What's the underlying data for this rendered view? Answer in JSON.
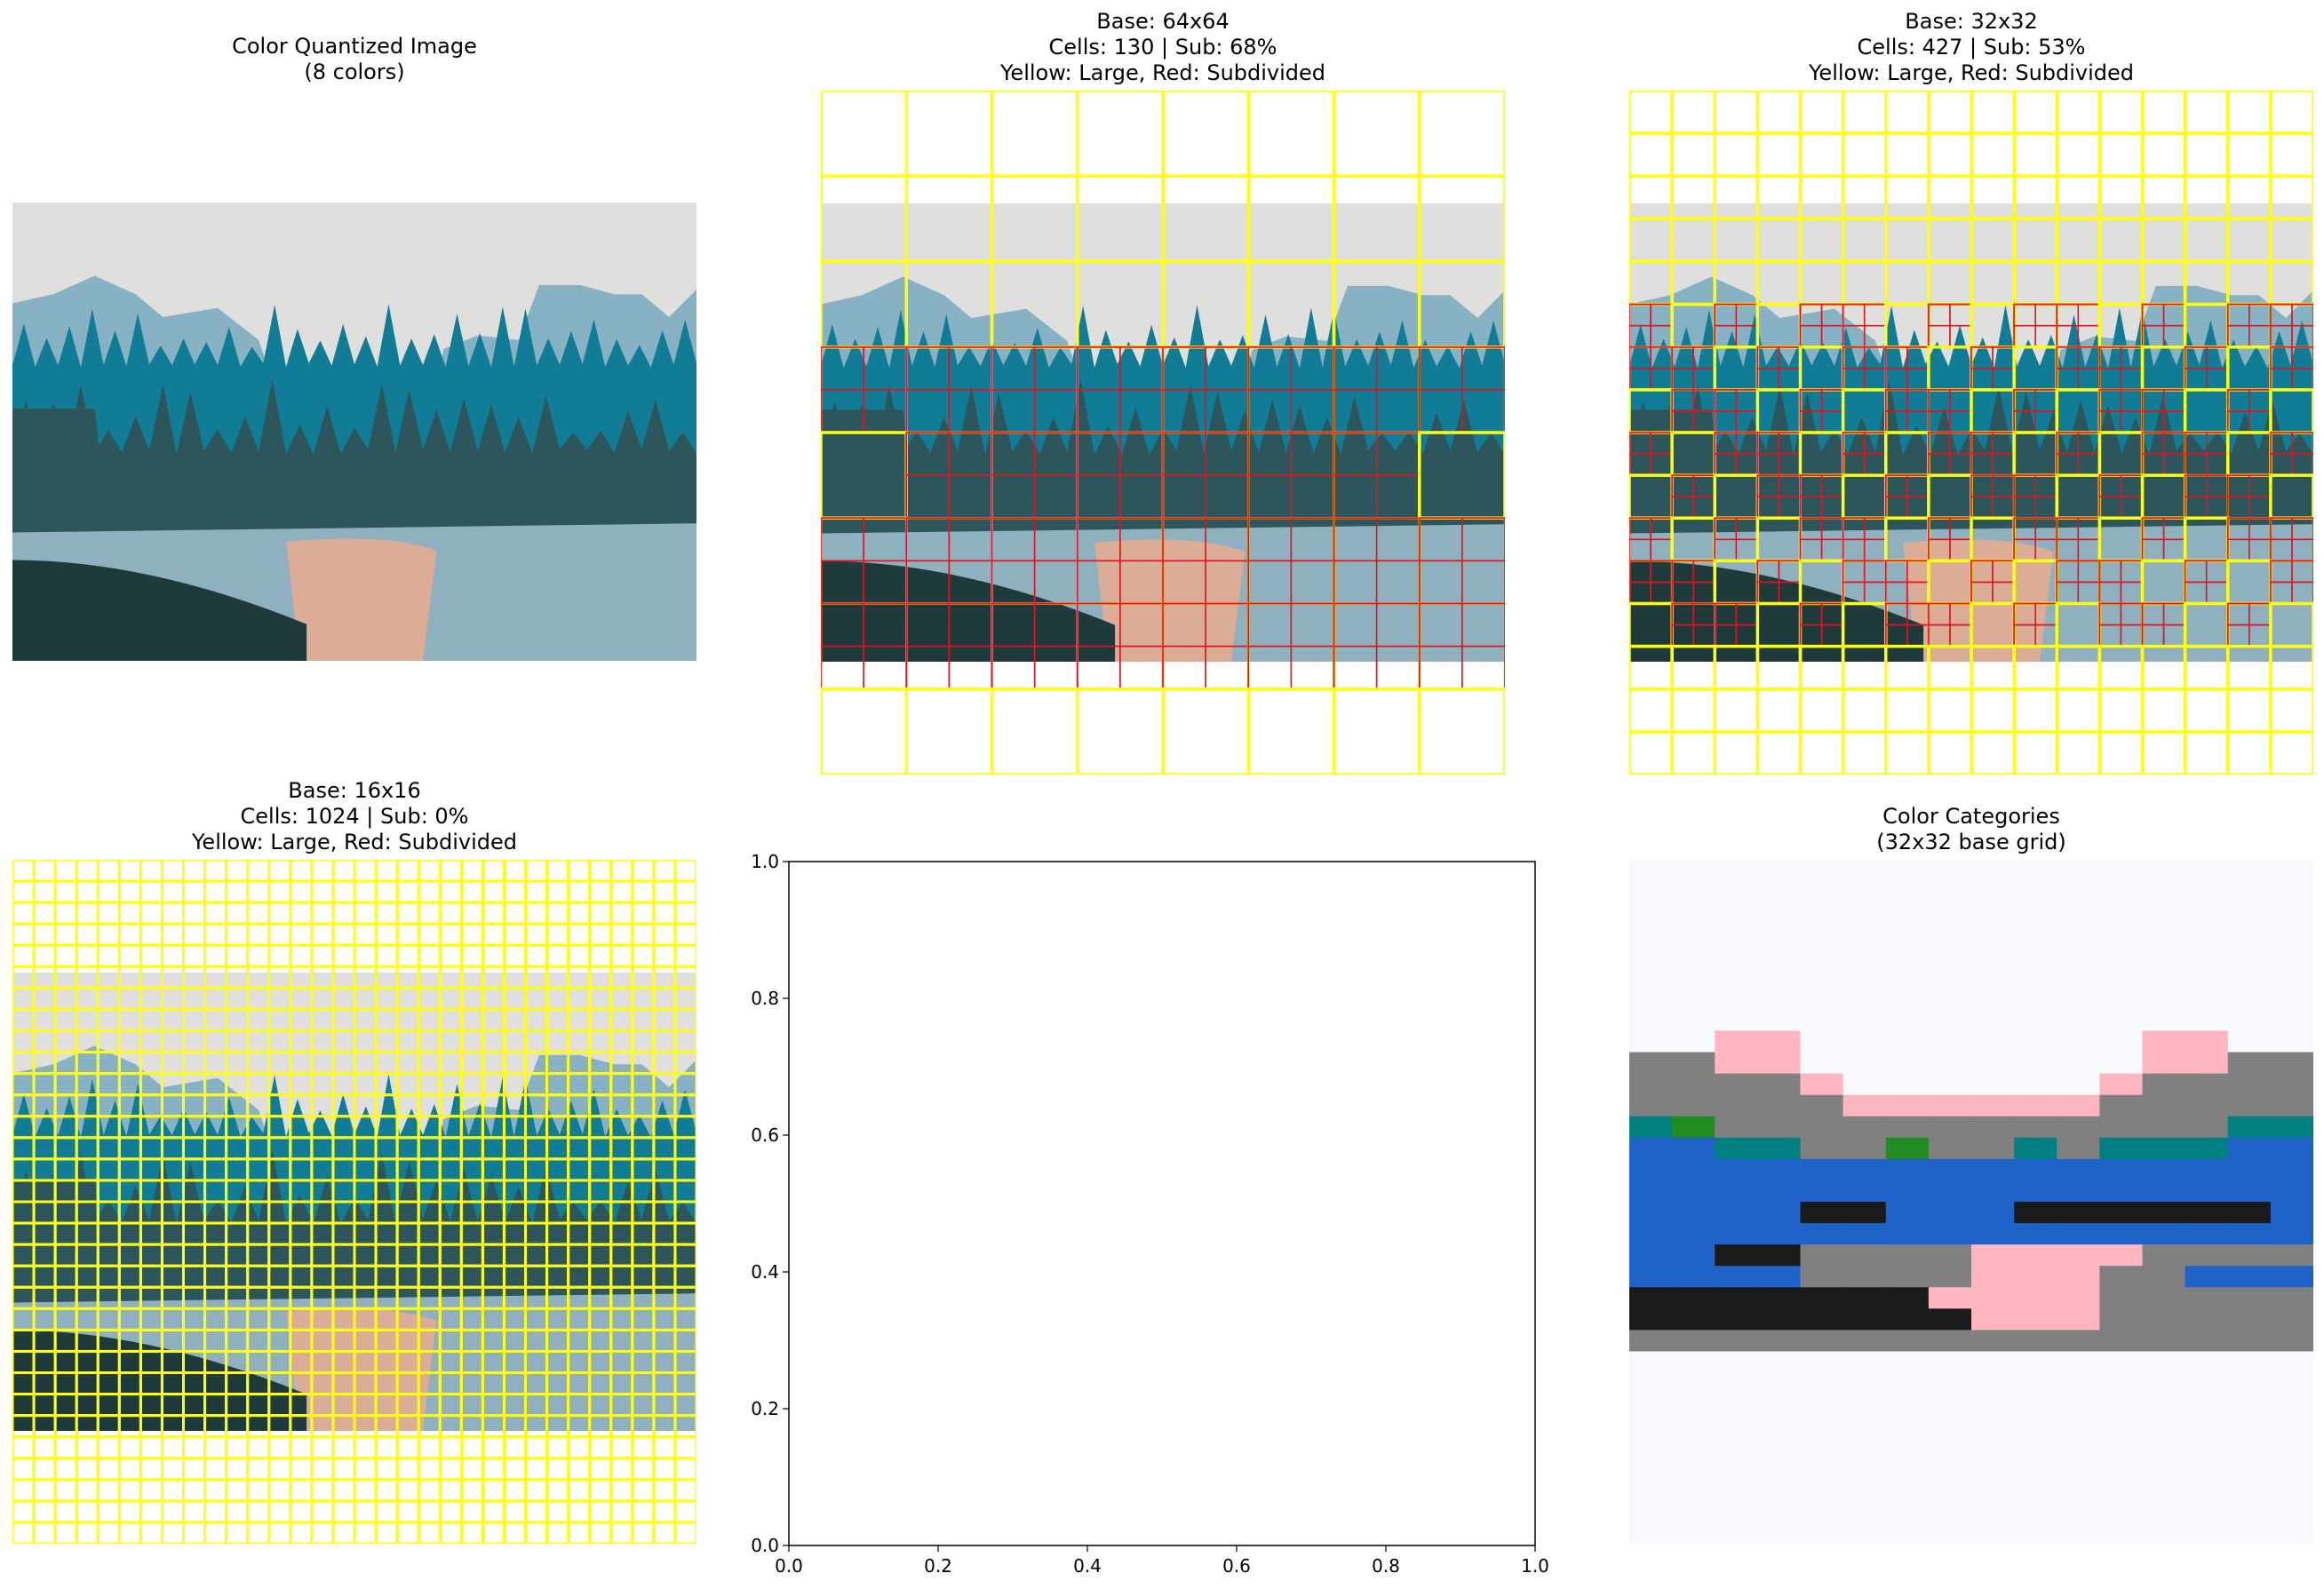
{
  "colors": {
    "sky": "#dfdfdd",
    "mountain": "#87b2c3",
    "peach": "#dbac96",
    "teal": "#117c96",
    "slate": "#2c565c",
    "dark": "#1f3a3b",
    "water": "#8fb0bf",
    "white": "#ffffff",
    "cellLarge": "#ffff14",
    "cellSub": "#e0141e",
    "category_bg": "#f7f9fd"
  },
  "panels": [
    {
      "title": "Color Quantized Image\n(8 colors)"
    },
    {
      "title": "Base: 64x64\nCells: 130 | Sub: 68%\nYellow: Large, Red: Subdivided"
    },
    {
      "title": "Base: 32x32\nCells: 427 | Sub: 53%\nYellow: Large, Red: Subdivided"
    },
    {
      "title": "Base: 16x16\nCells: 1024 | Sub: 0%\nYellow: Large, Red: Subdivided"
    },
    {
      "title": ""
    },
    {
      "title": "Color Categories\n(32x32 base grid)"
    }
  ],
  "chart_data": [
    {
      "type": "image",
      "title": "Color Quantized Image\n(8 colors)",
      "palette_size": 8
    },
    {
      "type": "grid-overlay",
      "title": "Base: 64x64\nCells: 130 | Sub: 68%\nYellow: Large, Red: Subdivided",
      "base": 64,
      "cells": 130,
      "subdivided_percent": 68,
      "legend": "Yellow: Large, Red: Subdivided"
    },
    {
      "type": "grid-overlay",
      "title": "Base: 32x32\nCells: 427 | Sub: 53%\nYellow: Large, Red: Subdivided",
      "base": 32,
      "cells": 427,
      "subdivided_percent": 53,
      "legend": "Yellow: Large, Red: Subdivided"
    },
    {
      "type": "grid-overlay",
      "title": "Base: 16x16\nCells: 1024 | Sub: 0%\nYellow: Large, Red: Subdivided",
      "base": 16,
      "cells": 1024,
      "subdivided_percent": 0,
      "legend": "Yellow: Large, Red: Subdivided"
    },
    {
      "type": "empty",
      "xlim": [
        0,
        1
      ],
      "ylim": [
        0,
        1
      ],
      "xticks": [
        "0.0",
        "0.2",
        "0.4",
        "0.6",
        "0.8",
        "1.0"
      ],
      "yticks": [
        "0.0",
        "0.2",
        "0.4",
        "0.6",
        "0.8",
        "1.0"
      ]
    },
    {
      "type": "heatmap",
      "title": "Color Categories\n(32x32 base grid)",
      "category_colors": {
        "W": "#f7f9fd",
        "P": "#ffb6c1",
        "G": "#808080",
        "E": "#228b22",
        "T": "#008080",
        "B": "#1f63c8",
        "K": "#1a1a1a"
      },
      "grid": [
        "WWWWWWWWWWWWWWWW",
        "WWWWWWWWWWWWWWWW",
        "WWWWWWWWWWWWWWWW",
        "WWWWWWWWWWWWWWWW",
        "WWWWWWWWWWWWWWWW",
        "WWWWWWWWWWWWWWWW",
        "WWWWWWWWWWWWWWWW",
        "WWWWWWWWWWWWWWWW",
        "WWPPWWWWWWWWPPWW",
        "GGPPWWWWWWWWPPGG",
        "GGGGPWWWWWWPGGGG",
        "GGGGGPPPPPPGGGGG",
        "TEGGGGGGGGGGGGTT",
        "BBTTGGEGGTGTTTBB",
        "BBBBBBBBBBBBBBBB",
        "BBBBBBBBBBBBBBBB",
        "BBBBKKBBBKKKKKKB",
        "BBBBBBBBBBBBBBBB",
        "BBKKGGGGPPPPGGGG",
        "BBBBGGGGPPPGGBBB",
        "KKKKKKKPPPPGGGGG",
        "KKKKKKKKPPPGGGGG",
        "GGGGGGGGGGGGGGGG",
        "WWWWWWWWWWWWWWWW",
        "WWWWWWWWWWWWWWWW",
        "WWWWWWWWWWWWWWWW",
        "WWWWWWWWWWWWWWWW",
        "WWWWWWWWWWWWWWWW",
        "WWWWWWWWWWWWWWWW",
        "WWWWWWWWWWWWWWWW",
        "WWWWWWWWWWWWWWWW",
        "WWWWWWWWWWWWWWWW"
      ]
    }
  ]
}
